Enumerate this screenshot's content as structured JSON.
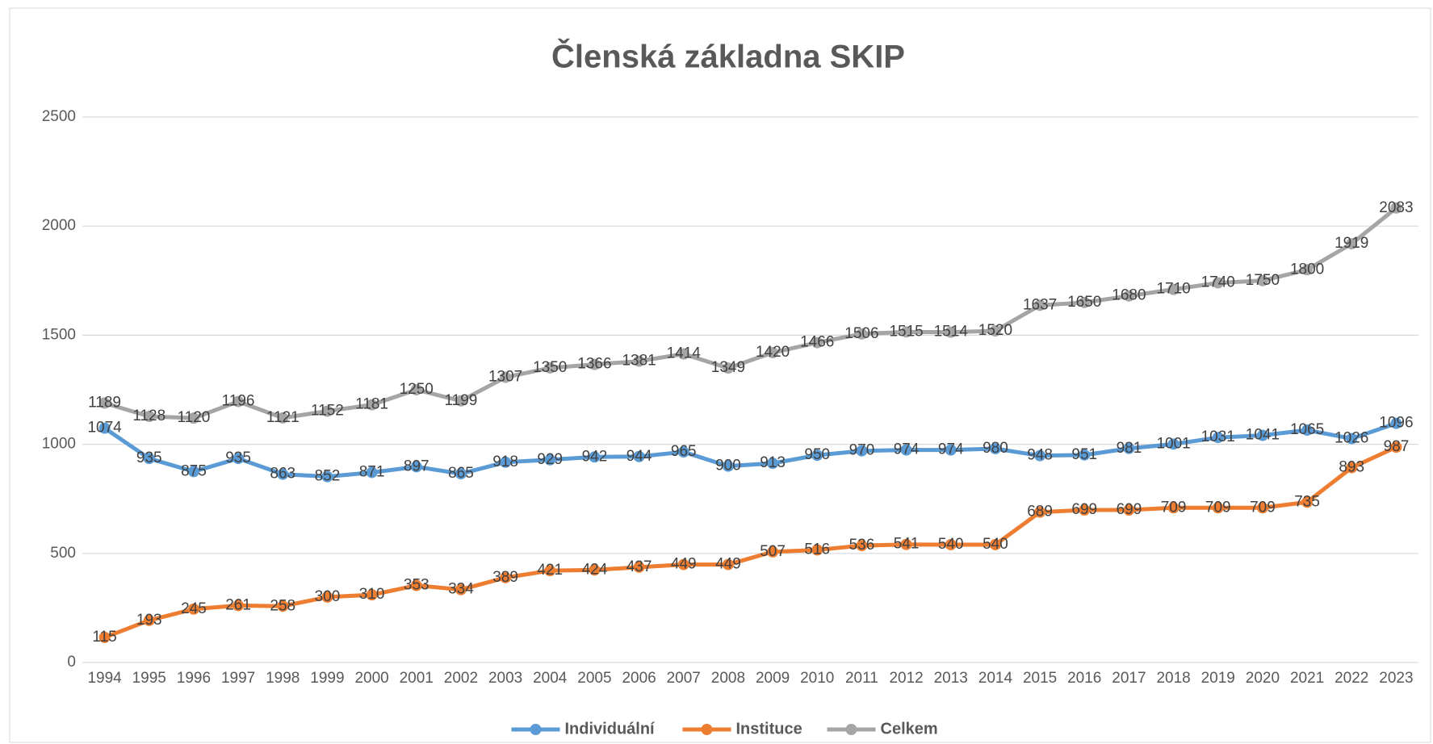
{
  "chart_data": {
    "type": "line",
    "title": "Členská základna SKIP",
    "categories": [
      "1994",
      "1995",
      "1996",
      "1997",
      "1998",
      "1999",
      "2000",
      "2001",
      "2002",
      "2003",
      "2004",
      "2005",
      "2006",
      "2007",
      "2008",
      "2009",
      "2010",
      "2011",
      "2012",
      "2013",
      "2014",
      "2015",
      "2016",
      "2017",
      "2018",
      "2019",
      "2020",
      "2021",
      "2022",
      "2023"
    ],
    "series": [
      {
        "name": "Individuální",
        "color": "#5b9bd5",
        "values": [
          1074,
          935,
          875,
          935,
          863,
          852,
          871,
          897,
          865,
          918,
          929,
          942,
          944,
          965,
          900,
          913,
          950,
          970,
          974,
          974,
          980,
          948,
          951,
          981,
          1001,
          1031,
          1041,
          1065,
          1026,
          1096
        ]
      },
      {
        "name": "Instituce",
        "color": "#ed7d31",
        "values": [
          115,
          193,
          245,
          261,
          258,
          300,
          310,
          353,
          334,
          389,
          421,
          424,
          437,
          449,
          449,
          507,
          516,
          536,
          541,
          540,
          540,
          689,
          699,
          699,
          709,
          709,
          709,
          735,
          893,
          987
        ]
      },
      {
        "name": "Celkem",
        "color": "#a5a5a5",
        "values": [
          1189,
          1128,
          1120,
          1196,
          1121,
          1152,
          1181,
          1250,
          1199,
          1307,
          1350,
          1366,
          1381,
          1414,
          1349,
          1420,
          1466,
          1506,
          1515,
          1514,
          1520,
          1637,
          1650,
          1680,
          1710,
          1740,
          1750,
          1800,
          1919,
          2083
        ]
      }
    ],
    "ylim": [
      0,
      2500
    ],
    "yticks": [
      0,
      500,
      1000,
      1500,
      2000,
      2500
    ],
    "grid": true,
    "legend": "bottom"
  }
}
